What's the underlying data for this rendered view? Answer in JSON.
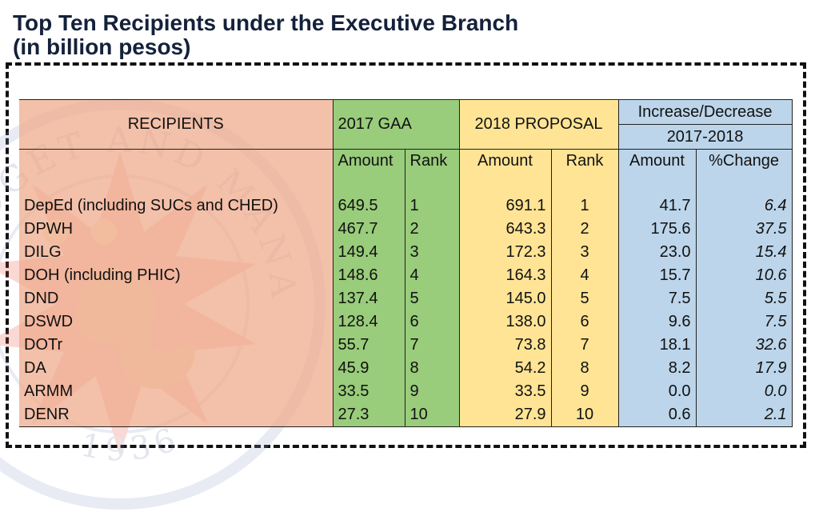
{
  "title_line1": "Top Ten Recipients under the Executive Branch",
  "title_line2": "(in billion pesos)",
  "chart_data": {
    "type": "table",
    "columns": {
      "recipients": "RECIPIENTS",
      "gaa_2017": "2017 GAA",
      "proposal_2018": "2018 PROPOSAL",
      "increase": "Increase/Decrease",
      "increase_period": "2017-2018",
      "amount": "Amount",
      "rank": "Rank",
      "pct_change": "%Change"
    },
    "rows": [
      {
        "recipient": "DepEd (including SUCs and CHED)",
        "gaa_amount": "649.5",
        "gaa_rank": "1",
        "proposal_amount": "691.1",
        "proposal_rank": "1",
        "change_amount": "41.7",
        "change_pct": "6.4"
      },
      {
        "recipient": "DPWH",
        "gaa_amount": "467.7",
        "gaa_rank": "2",
        "proposal_amount": "643.3",
        "proposal_rank": "2",
        "change_amount": "175.6",
        "change_pct": "37.5"
      },
      {
        "recipient": "DILG",
        "gaa_amount": "149.4",
        "gaa_rank": "3",
        "proposal_amount": "172.3",
        "proposal_rank": "3",
        "change_amount": "23.0",
        "change_pct": "15.4"
      },
      {
        "recipient": "DOH (including PHIC)",
        "gaa_amount": "148.6",
        "gaa_rank": "4",
        "proposal_amount": "164.3",
        "proposal_rank": "4",
        "change_amount": "15.7",
        "change_pct": "10.6"
      },
      {
        "recipient": "DND",
        "gaa_amount": "137.4",
        "gaa_rank": "5",
        "proposal_amount": "145.0",
        "proposal_rank": "5",
        "change_amount": "7.5",
        "change_pct": "5.5"
      },
      {
        "recipient": "DSWD",
        "gaa_amount": "128.4",
        "gaa_rank": "6",
        "proposal_amount": "138.0",
        "proposal_rank": "6",
        "change_amount": "9.6",
        "change_pct": "7.5"
      },
      {
        "recipient": "DOTr",
        "gaa_amount": "55.7",
        "gaa_rank": "7",
        "proposal_amount": "73.8",
        "proposal_rank": "7",
        "change_amount": "18.1",
        "change_pct": "32.6"
      },
      {
        "recipient": "DA",
        "gaa_amount": "45.9",
        "gaa_rank": "8",
        "proposal_amount": "54.2",
        "proposal_rank": "8",
        "change_amount": "8.2",
        "change_pct": "17.9"
      },
      {
        "recipient": "ARMM",
        "gaa_amount": "33.5",
        "gaa_rank": "9",
        "proposal_amount": "33.5",
        "proposal_rank": "9",
        "change_amount": "0.0",
        "change_pct": "0.0"
      },
      {
        "recipient": "DENR",
        "gaa_amount": "27.3",
        "gaa_rank": "10",
        "proposal_amount": "27.9",
        "proposal_rank": "10",
        "change_amount": "0.6",
        "change_pct": "2.1"
      }
    ]
  },
  "watermark": {
    "text_top": "BUDGET AND MANAGEMENT",
    "text_bottom": "1936",
    "colors": {
      "sun": "#e8432a",
      "seahorse": "#d98a18",
      "ring": "#8fa0c8"
    }
  }
}
